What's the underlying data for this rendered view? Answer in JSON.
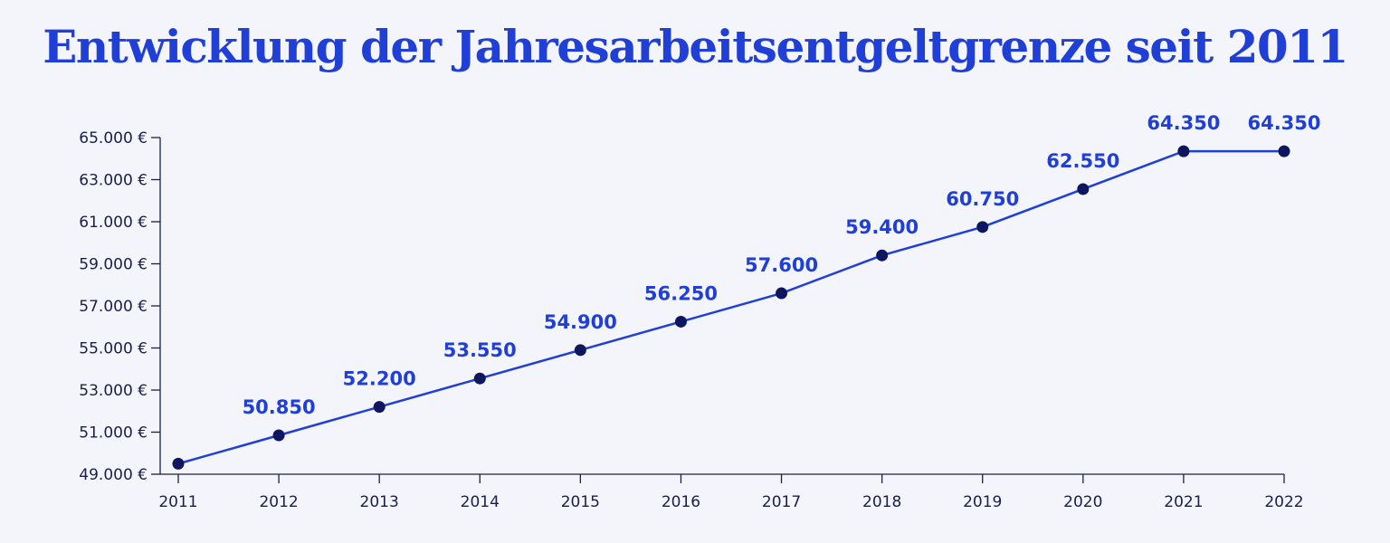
{
  "colors": {
    "background": "#f4f5fa",
    "title": "#1f3fd6",
    "line": "#1f3fd6",
    "marker": "#0f1660",
    "axis": "#1a1f4a",
    "data_label": "#1f3fd6"
  },
  "chart_data": {
    "type": "line",
    "title": "Entwicklung der Jahresarbeitsentgeltgrenze seit 2011",
    "xlabel": "",
    "ylabel": "",
    "categories": [
      "2011",
      "2012",
      "2013",
      "2014",
      "2015",
      "2016",
      "2017",
      "2018",
      "2019",
      "2020",
      "2021",
      "2022"
    ],
    "series": [
      {
        "values": [
          49500,
          50850,
          52200,
          53550,
          54900,
          56250,
          57600,
          59400,
          60750,
          62550,
          64350,
          64350
        ],
        "labels": [
          "",
          "50.850",
          "52.200",
          "53.550",
          "54.900",
          "56.250",
          "57.600",
          "59.400",
          "60.750",
          "62.550",
          "64.350",
          "64.350"
        ]
      }
    ],
    "ylim": [
      49000,
      65000
    ],
    "yticks": [
      49000,
      51000,
      53000,
      55000,
      57000,
      59000,
      61000,
      63000,
      65000
    ],
    "ytick_labels": [
      "49.000 €",
      "51.000 €",
      "53.000 €",
      "55.000 €",
      "57.000 €",
      "59.000 €",
      "61.000 €",
      "63.000 €",
      "65.000 €"
    ],
    "grid": false,
    "legend": "none"
  }
}
